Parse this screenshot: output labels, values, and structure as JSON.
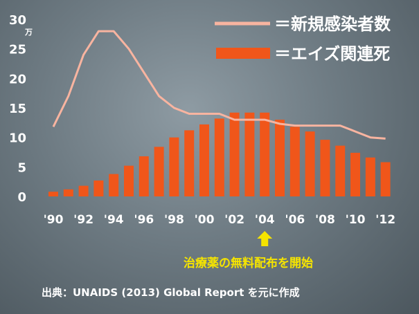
{
  "chart_data": {
    "type": "bar",
    "x": [
      "'90",
      "'91",
      "'92",
      "'93",
      "'94",
      "'95",
      "'96",
      "'97",
      "'98",
      "'99",
      "'00",
      "'01",
      "'02",
      "'03",
      "'04",
      "'05",
      "'06",
      "'07",
      "'08",
      "'09",
      "'10",
      "'11",
      "'12"
    ],
    "x_tick_labels": [
      "'90",
      "'92",
      "'94",
      "'96",
      "'98",
      "'00",
      "'02",
      "'04",
      "'06",
      "'08",
      "'10",
      "'12"
    ],
    "series": [
      {
        "name": "＝エイズ関連死",
        "type": "bar",
        "color": "#f0561a",
        "values": [
          0.8,
          1.2,
          1.8,
          2.7,
          3.8,
          5.2,
          6.8,
          8.4,
          10.0,
          11.2,
          12.2,
          13.2,
          14.2,
          14.2,
          14.2,
          13.0,
          11.8,
          11.0,
          9.6,
          8.6,
          7.4,
          6.6,
          5.8
        ]
      },
      {
        "name": "＝新規感染者数",
        "type": "line",
        "color": "#f8b4a0",
        "values": [
          11.8,
          17.0,
          24.0,
          28.0,
          28.0,
          25.0,
          21.0,
          17.0,
          15.0,
          14.0,
          14.0,
          14.0,
          13.0,
          13.0,
          13.0,
          12.3,
          12.0,
          12.0,
          12.0,
          12.0,
          11.0,
          10.0,
          9.8
        ]
      }
    ],
    "y_ticks": [
      "0",
      "5",
      "10",
      "15",
      "20",
      "25",
      "30"
    ],
    "y_unit": "万",
    "ylim": [
      0,
      30
    ],
    "grid": false,
    "legend_position": "top-right",
    "annotation": "治療薬の無料配布を開始",
    "annotation_year": "'04",
    "annotation_color": "#f5e400"
  },
  "source": "出典：UNAIDS (2013) Global Report を元に作成"
}
